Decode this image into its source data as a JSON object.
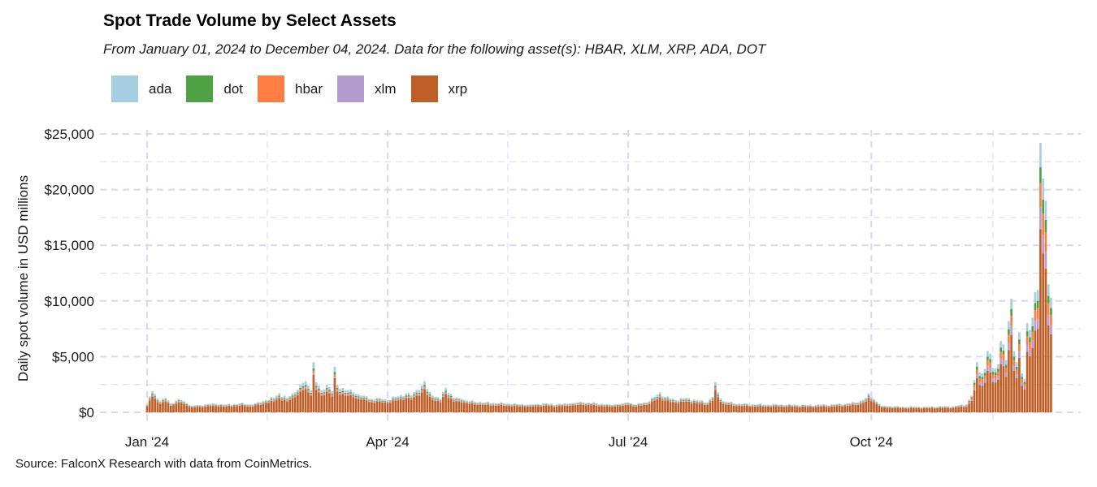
{
  "chart_data": {
    "type": "bar",
    "stacked": true,
    "title": "Spot Trade Volume by Select Assets",
    "subtitle": "From January 01, 2024 to December 04, 2024. Data for the following asset(s): HBAR, XLM, XRP, ADA, DOT",
    "xlabel": "",
    "ylabel": "Daily spot volume in USD millions",
    "ylim": [
      0,
      25000
    ],
    "yticks": [
      0,
      5000,
      10000,
      15000,
      20000,
      25000
    ],
    "ytick_labels": [
      "$0",
      "$5,000",
      "$10,000",
      "$15,000",
      "$20,000",
      "$25,000"
    ],
    "xticks": [
      {
        "label": "Jan '24",
        "day": 0
      },
      {
        "label": "Apr '24",
        "day": 91
      },
      {
        "label": "Jul '24",
        "day": 182
      },
      {
        "label": "Oct '24",
        "day": 274
      }
    ],
    "x_range_days": [
      -9,
      349
    ],
    "grid": true,
    "legend": "top-left",
    "source": "Source: FalconX Research with data from CoinMetrics.",
    "series": [
      {
        "name": "ada",
        "color": "#a6cee3"
      },
      {
        "name": "dot",
        "color": "#4ea244"
      },
      {
        "name": "hbar",
        "color": "#ff7c43"
      },
      {
        "name": "xlm",
        "color": "#b59ccf"
      },
      {
        "name": "xrp",
        "color": "#bf5f28"
      }
    ],
    "anchors_day_total": [
      [
        0,
        700
      ],
      [
        2,
        1900
      ],
      [
        5,
        1000
      ],
      [
        7,
        1300
      ],
      [
        9,
        800
      ],
      [
        12,
        1200
      ],
      [
        14,
        1000
      ],
      [
        17,
        600
      ],
      [
        20,
        650
      ],
      [
        25,
        800
      ],
      [
        30,
        700
      ],
      [
        35,
        800
      ],
      [
        40,
        700
      ],
      [
        45,
        1100
      ],
      [
        48,
        1300
      ],
      [
        50,
        1700
      ],
      [
        53,
        1300
      ],
      [
        56,
        1800
      ],
      [
        58,
        2500
      ],
      [
        60,
        2800
      ],
      [
        62,
        2000
      ],
      [
        63,
        4500
      ],
      [
        64,
        2700
      ],
      [
        66,
        2000
      ],
      [
        68,
        2500
      ],
      [
        70,
        1900
      ],
      [
        71,
        4100
      ],
      [
        72,
        2500
      ],
      [
        75,
        2000
      ],
      [
        78,
        1800
      ],
      [
        82,
        1500
      ],
      [
        85,
        1200
      ],
      [
        88,
        1300
      ],
      [
        91,
        1100
      ],
      [
        94,
        1400
      ],
      [
        98,
        1700
      ],
      [
        100,
        1500
      ],
      [
        102,
        2000
      ],
      [
        104,
        2400
      ],
      [
        105,
        2800
      ],
      [
        106,
        2100
      ],
      [
        108,
        1500
      ],
      [
        111,
        1200
      ],
      [
        113,
        2200
      ],
      [
        116,
        1300
      ],
      [
        119,
        1200
      ],
      [
        122,
        1000
      ],
      [
        128,
        900
      ],
      [
        135,
        800
      ],
      [
        140,
        750
      ],
      [
        145,
        700
      ],
      [
        150,
        800
      ],
      [
        155,
        700
      ],
      [
        160,
        800
      ],
      [
        165,
        900
      ],
      [
        170,
        800
      ],
      [
        175,
        700
      ],
      [
        180,
        800
      ],
      [
        182,
        900
      ],
      [
        185,
        700
      ],
      [
        190,
        1000
      ],
      [
        192,
        1400
      ],
      [
        194,
        1800
      ],
      [
        196,
        1400
      ],
      [
        200,
        1100
      ],
      [
        204,
        1300
      ],
      [
        208,
        1100
      ],
      [
        212,
        900
      ],
      [
        214,
        1400
      ],
      [
        215,
        2700
      ],
      [
        216,
        1800
      ],
      [
        218,
        1000
      ],
      [
        222,
        800
      ],
      [
        230,
        700
      ],
      [
        240,
        700
      ],
      [
        250,
        650
      ],
      [
        260,
        700
      ],
      [
        265,
        800
      ],
      [
        269,
        900
      ],
      [
        272,
        1300
      ],
      [
        273,
        1700
      ],
      [
        275,
        1200
      ],
      [
        278,
        600
      ],
      [
        285,
        500
      ],
      [
        295,
        500
      ],
      [
        305,
        550
      ],
      [
        310,
        700
      ],
      [
        312,
        1500
      ],
      [
        313,
        2900
      ],
      [
        314,
        4500
      ],
      [
        316,
        3500
      ],
      [
        317,
        3900
      ],
      [
        318,
        5500
      ],
      [
        320,
        4000
      ],
      [
        322,
        4300
      ],
      [
        323,
        6400
      ],
      [
        325,
        4700
      ],
      [
        326,
        8200
      ],
      [
        327,
        10200
      ],
      [
        328,
        5500
      ],
      [
        329,
        4500
      ],
      [
        330,
        7200
      ],
      [
        331,
        3500
      ],
      [
        332,
        3000
      ],
      [
        333,
        8000
      ],
      [
        334,
        7400
      ],
      [
        335,
        8500
      ],
      [
        336,
        10800
      ],
      [
        337,
        11000
      ],
      [
        338,
        24200
      ],
      [
        339,
        21000
      ],
      [
        340,
        19000
      ],
      [
        341,
        11500
      ],
      [
        342,
        10300
      ]
    ],
    "share_normal": {
      "ada": 0.12,
      "dot": 0.05,
      "hbar": 0.04,
      "xlm": 0.04,
      "xrp": 0.75
    },
    "share_late": {
      "ada": 0.09,
      "dot": 0.06,
      "hbar": 0.09,
      "xlm": 0.08,
      "xrp": 0.68
    }
  }
}
